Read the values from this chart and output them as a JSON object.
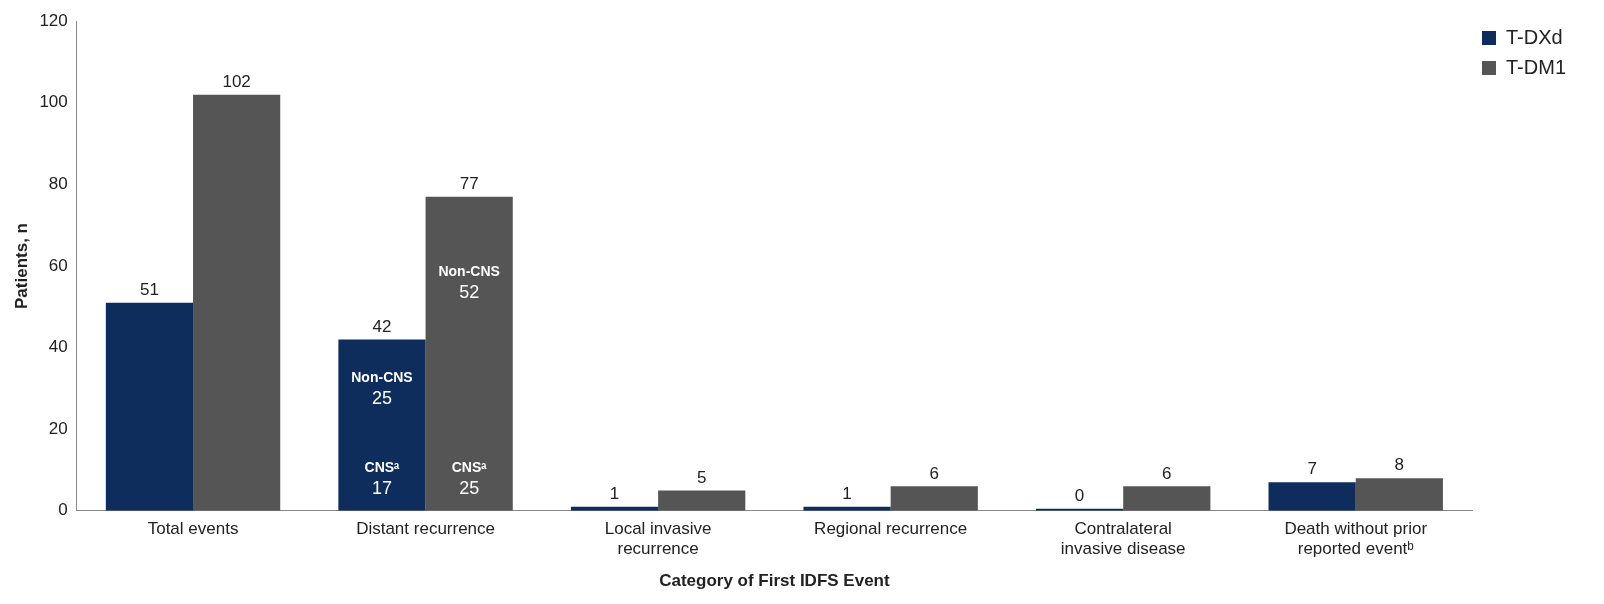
{
  "chart_data": {
    "type": "bar",
    "xlabel": "Category of First IDFS Event",
    "ylabel": "Patients, n",
    "categories": [
      "Total events",
      "Distant recurrence",
      "Local invasive recurrence",
      "Regional recurrence",
      "Contralateral invasive disease",
      "Death without prior reported eventᵇ"
    ],
    "series": [
      {
        "name": "T-DXd",
        "color": "#0f2d5c",
        "values": [
          51,
          42,
          1,
          1,
          0,
          7
        ]
      },
      {
        "name": "T-DM1",
        "color": "#555555",
        "values": [
          102,
          77,
          5,
          6,
          6,
          8
        ]
      }
    ],
    "ylim": [
      0,
      120
    ],
    "yticks": [
      0,
      20,
      40,
      60,
      80,
      100,
      120
    ],
    "grid": false,
    "legend": "top right",
    "data_labels": true,
    "annotations": [
      {
        "text": "Non-CNS 25",
        "x": "Distant recurrence",
        "y": 30
      },
      {
        "text": "Non-CNS 52",
        "x": "Distant recurrence",
        "y": 56
      },
      {
        "text": "CNSᵃ 17",
        "x": "Distant recurrence",
        "y": 8
      },
      {
        "text": "CNSᵃ 25",
        "x": "Distant recurrence",
        "y": 8
      }
    ]
  }
}
